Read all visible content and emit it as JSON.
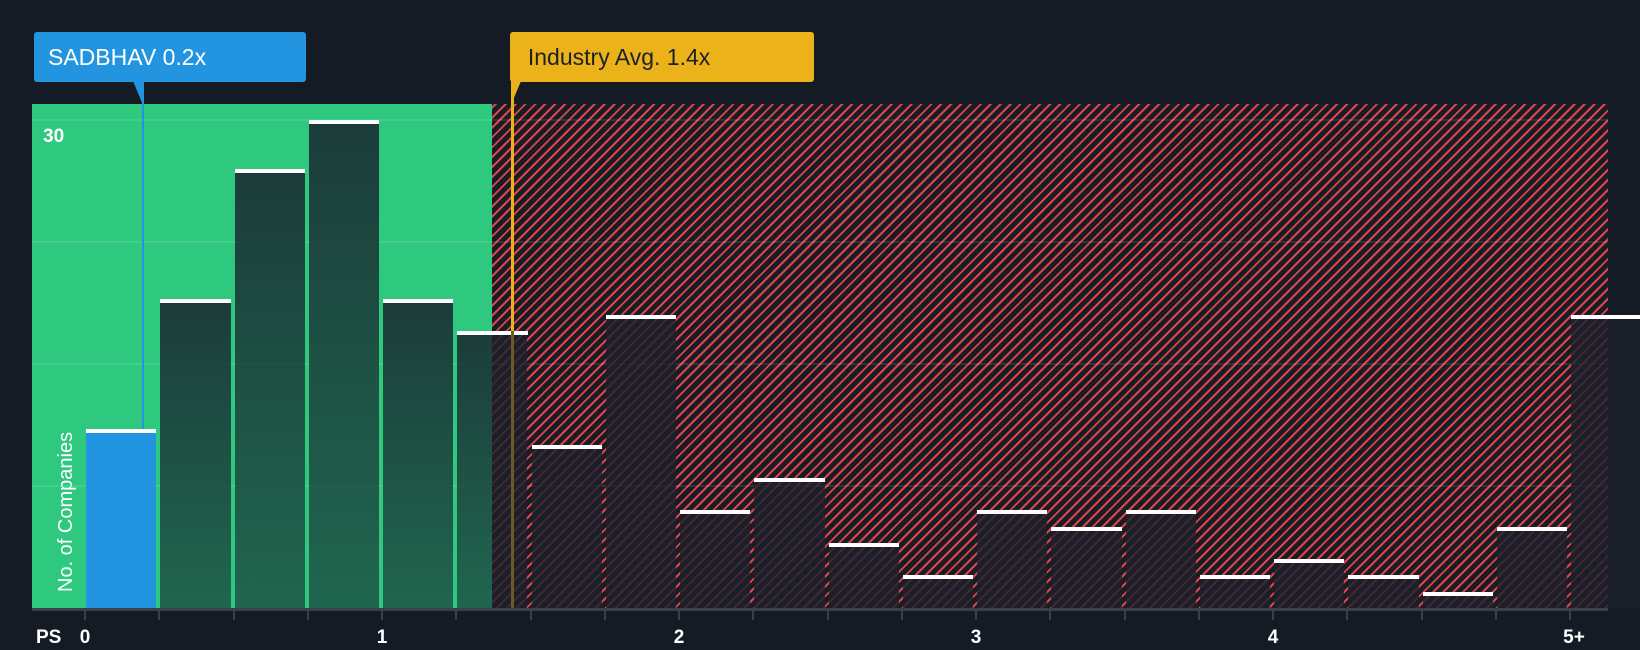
{
  "chart_data": {
    "type": "bar",
    "title": "",
    "xlabel": "PS",
    "ylabel": "No. of Companies",
    "x_tick_labels": [
      "0",
      "1",
      "2",
      "3",
      "4",
      "5+"
    ],
    "x_tick_values": [
      0,
      1,
      2,
      3,
      4,
      5
    ],
    "y_tick_labels": [
      "30"
    ],
    "ylim": [
      0,
      31
    ],
    "grid": true,
    "bin_width": 0.25,
    "categories": [
      "0-0.25",
      "0.25-0.5",
      "0.5-0.75",
      "0.75-1",
      "1-1.25",
      "1.25-1.5",
      "1.5-1.75",
      "1.75-2",
      "2-2.25",
      "2.25-2.5",
      "2.5-2.75",
      "2.75-3",
      "3-3.25",
      "3.25-3.5",
      "3.5-3.75",
      "3.75-4",
      "4-4.25",
      "4.25-4.5",
      "4.5-4.75",
      "4.75-5",
      "5+"
    ],
    "values": [
      11,
      19,
      27,
      30,
      19,
      17,
      10,
      18,
      6,
      8,
      4,
      2,
      6,
      5,
      6,
      2,
      3,
      2,
      1,
      5,
      18
    ],
    "highlight_bin_index": 0,
    "annotations": [
      {
        "label": "SADBHAV 0.2x",
        "value": 0.2,
        "color": "#2394df"
      },
      {
        "label": "Industry Avg. 1.4x",
        "value": 1.4,
        "color": "#ecb21a"
      }
    ],
    "regions": [
      {
        "name": "undervalued",
        "from": 0,
        "to": 1.37,
        "color": "#2ec97f"
      },
      {
        "name": "overvalued",
        "from": 1.37,
        "to": 5.25,
        "color": "#e0444b",
        "pattern": "hatched"
      }
    ]
  },
  "labels": {
    "company_marker": "SADBHAV 0.2x",
    "industry_marker": "Industry Avg. 1.4x",
    "y_axis_title": "No. of Companies",
    "y_max": "30",
    "x_axis_title": "PS"
  },
  "colors": {
    "background": "#151b24",
    "good_zone": "#2ec97f",
    "bad_zone_hatch": "#e0444b",
    "company": "#2394df",
    "industry": "#ecb21a",
    "bar_cap": "#ffffff"
  }
}
